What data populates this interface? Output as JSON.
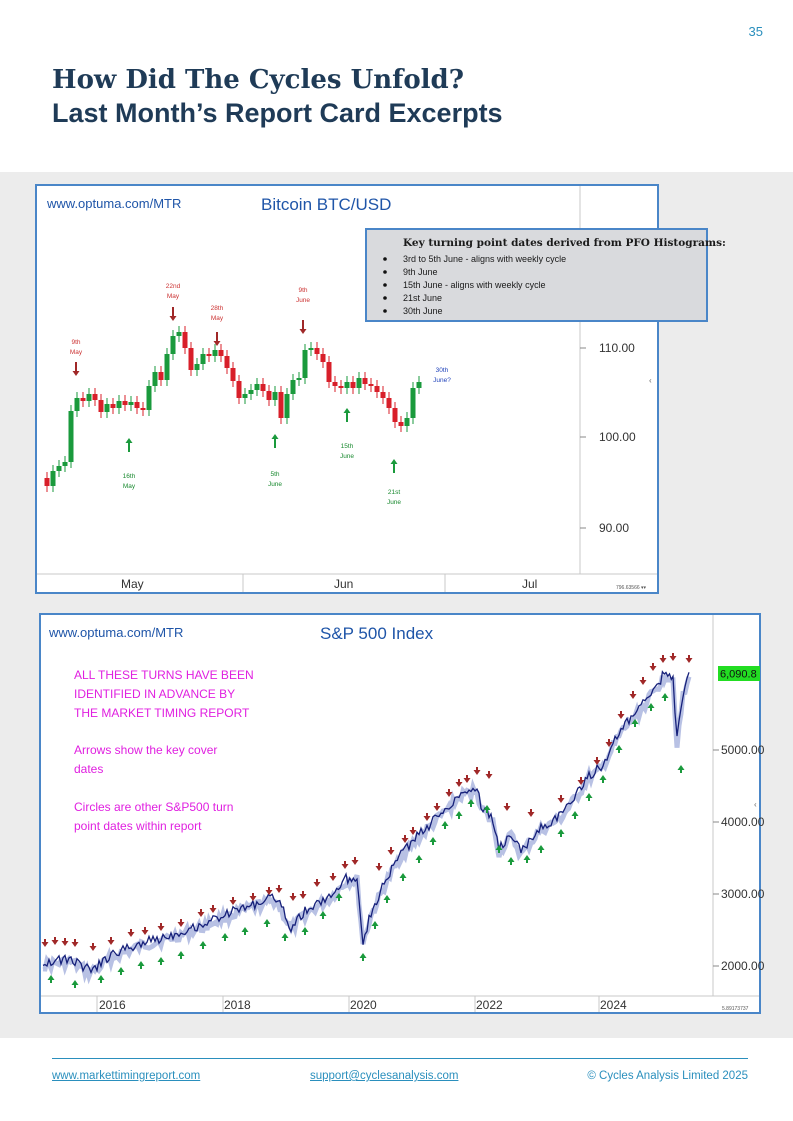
{
  "page_number": "35",
  "title": "How Did The Cycles Unfold?",
  "subtitle": "Last Month’s Report Card Excerpts",
  "footer": {
    "website": "www.markettimingreport.com",
    "email": "support@cyclesanalysis.com",
    "copyright": "© Cycles Analysis Limited 2025"
  },
  "colors": {
    "frame_border": "#4a86c8",
    "bull": "#1a9a3c",
    "bear": "#d81f2a",
    "annotation_magenta": "#e020e0",
    "title_navy": "#1f3b57"
  },
  "btc_chart": {
    "watermark": "www.optuma.com/MTR",
    "title": "Bitcoin BTC/USD",
    "y_ticks": [
      "110.00",
      "100.00",
      "90.00"
    ],
    "x_ticks": [
      "May",
      "Jun",
      "Jul"
    ],
    "info_box": {
      "heading": "Key turning point dates derived from PFO Histograms:",
      "items": [
        "3rd to 5th June - aligns with weekly cycle",
        "9th June",
        "15th June  - aligns with weekly cycle",
        "21st June",
        "30th June"
      ]
    },
    "top_annotations": [
      {
        "l1": "9th",
        "l2": "May"
      },
      {
        "l1": "22nd",
        "l2": "May"
      },
      {
        "l1": "28th",
        "l2": "May"
      },
      {
        "l1": "9th",
        "l2": "June"
      }
    ],
    "bottom_annotations": [
      {
        "l1": "16th",
        "l2": "May"
      },
      {
        "l1": "5th",
        "l2": "June"
      },
      {
        "l1": "15th",
        "l2": "June"
      },
      {
        "l1": "21st",
        "l2": "June"
      }
    ],
    "future_annotation": {
      "l1": "30th",
      "l2": "June?"
    },
    "corner_text": "796.63566 ▾▾"
  },
  "spx_chart": {
    "watermark": "www.optuma.com/MTR",
    "title": "S&P 500 Index",
    "last_price": "6,090.8",
    "y_ticks": [
      "5000.00",
      "4000.00",
      "3000.00",
      "2000.00"
    ],
    "x_ticks": [
      "2016",
      "2018",
      "2020",
      "2022",
      "2024"
    ],
    "notes": [
      [
        "ALL THESE TURNS HAVE BEEN",
        "IDENTIFIED IN ADVANCE BY",
        "THE MARKET TIMING REPORT"
      ],
      [
        "Arrows show the key cover",
        "dates"
      ],
      [
        "Circles are other S&P500 turn",
        "point dates within report"
      ]
    ],
    "corner_text": "5.89173737"
  }
}
